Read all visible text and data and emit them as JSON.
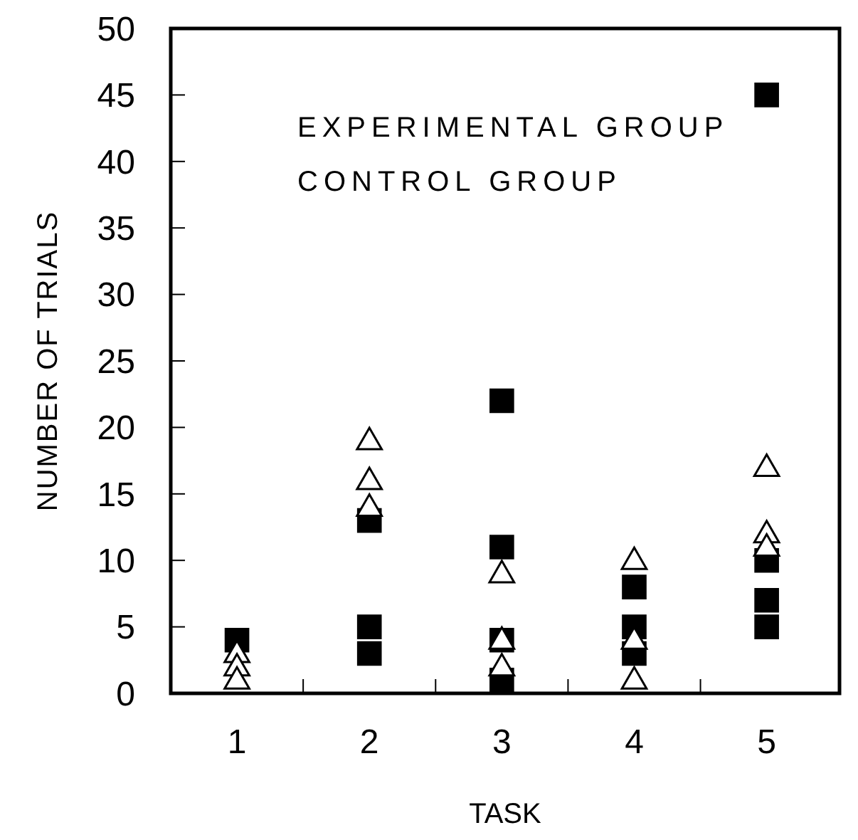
{
  "chart_data": {
    "type": "scatter",
    "xlabel": "TASK",
    "ylabel": "NUMBER OF TRIALS",
    "annotations": [
      "EXPERIMENTAL GROUP",
      "CONTROL GROUP"
    ],
    "xlim": [
      0.5,
      5.55
    ],
    "xticks": [
      {
        "value": 1,
        "label": "1"
      },
      {
        "value": 1.5,
        "label": null
      },
      {
        "value": 2,
        "label": "2"
      },
      {
        "value": 2.5,
        "label": null
      },
      {
        "value": 3,
        "label": "3"
      },
      {
        "value": 3.5,
        "label": null
      },
      {
        "value": 4,
        "label": "4"
      },
      {
        "value": 4.5,
        "label": null
      },
      {
        "value": 5,
        "label": "5"
      }
    ],
    "ylim": [
      0,
      50
    ],
    "yticks": [
      0,
      5,
      10,
      15,
      20,
      25,
      30,
      35,
      40,
      45,
      50
    ],
    "grid": false,
    "series": [
      {
        "color": "#000000",
        "marker": "square",
        "x": [
          1,
          2,
          2,
          2,
          3,
          3,
          3,
          3,
          4,
          4,
          4,
          5,
          5,
          5,
          5
        ],
        "values": [
          4,
          13,
          5,
          3,
          22,
          11,
          4,
          1,
          8,
          5,
          3,
          45,
          10,
          7,
          5
        ]
      },
      {
        "color": "#000000",
        "marker": "triangle",
        "x": [
          1,
          1,
          1,
          2,
          2,
          2,
          3,
          3,
          3,
          4,
          4,
          4,
          5,
          5,
          5
        ],
        "values": [
          3,
          2,
          1,
          19,
          16,
          14,
          9,
          4,
          2,
          10,
          4,
          1,
          17,
          12,
          11
        ]
      }
    ]
  }
}
